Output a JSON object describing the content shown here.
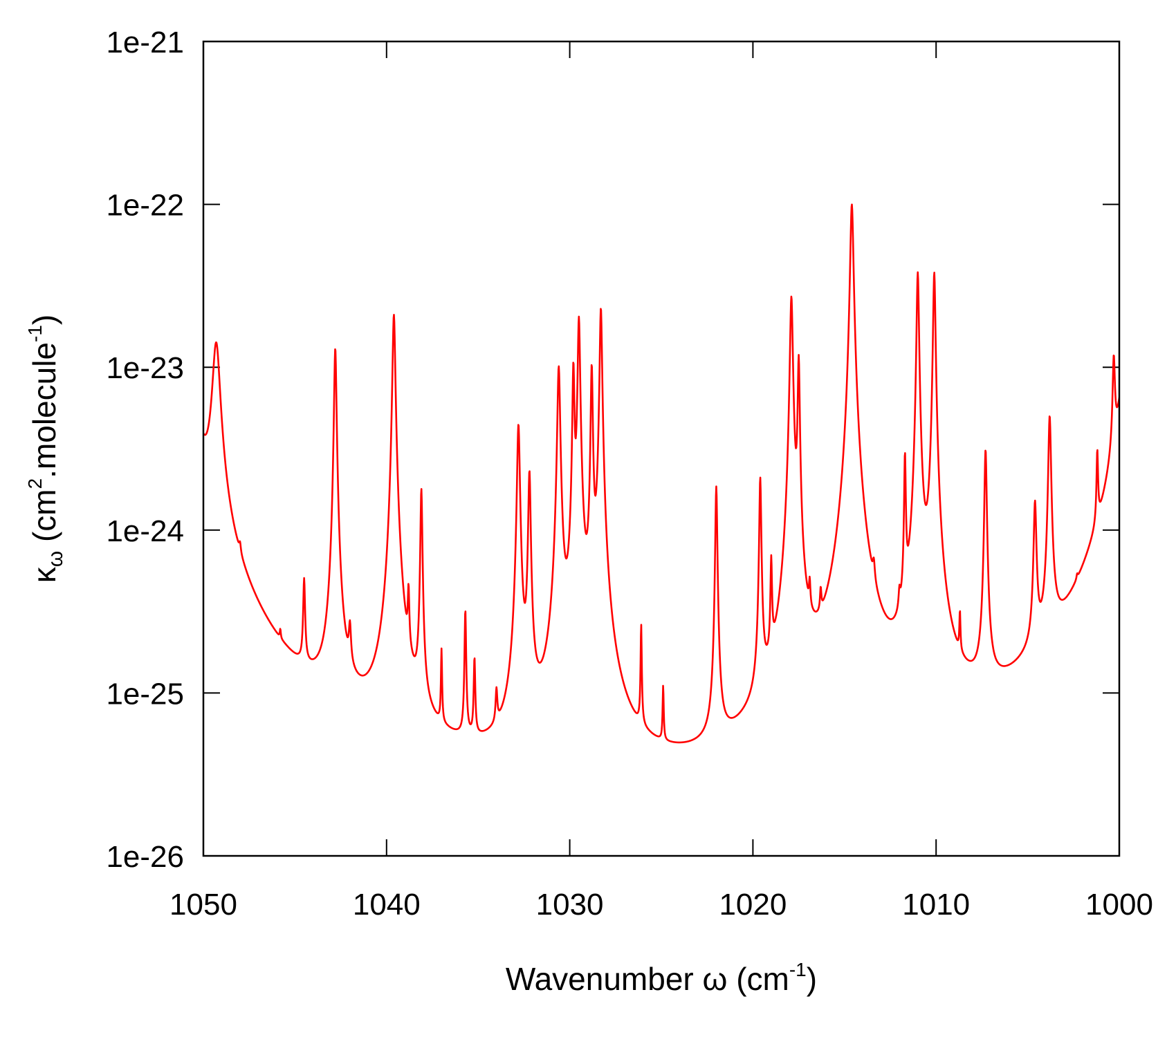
{
  "chart_data": {
    "type": "line",
    "title": "",
    "xlabel": {
      "base": "Wavenumber ω (cm",
      "sup": "-1",
      "tail": ")"
    },
    "ylabel": {
      "kappa": "κ",
      "sub": "ω",
      "mid": " (cm",
      "sup1": "2",
      "mid2": ".molecule",
      "sup2": "-1",
      "tail": ")"
    },
    "x_axis": {
      "range": [
        1050,
        1000
      ],
      "reversed": true,
      "ticks": [
        1050,
        1040,
        1030,
        1020,
        1010,
        1000
      ],
      "tick_labels": [
        "1050",
        "1040",
        "1030",
        "1020",
        "1010",
        "1000"
      ]
    },
    "y_axis": {
      "scale": "log",
      "range": [
        1e-26,
        1e-21
      ],
      "ticks": [
        1e-21,
        1e-22,
        1e-23,
        1e-24,
        1e-25,
        1e-26
      ],
      "tick_labels": [
        "1e-21",
        "1e-22",
        "1e-23",
        "1e-24",
        "1e-25",
        "1e-26"
      ]
    },
    "grid": false,
    "legend": "none",
    "series": [
      {
        "color": "#ff0000",
        "baseline": 1e-26,
        "peaks": [
          [
            1051.2,
            5e-23,
            0.3
          ],
          [
            1049.3,
            1.3e-23,
            0.2
          ],
          [
            1048.0,
            1e-25,
            0.05
          ],
          [
            1045.8,
            3e-26,
            0.03
          ],
          [
            1044.5,
            3.5e-25,
            0.05
          ],
          [
            1042.8,
            1.3e-23,
            0.06
          ],
          [
            1042.0,
            1.1e-25,
            0.06
          ],
          [
            1039.6,
            2.1e-23,
            0.07
          ],
          [
            1038.8,
            2.5e-25,
            0.04
          ],
          [
            1038.1,
            1.7e-24,
            0.05
          ],
          [
            1037.0,
            1.2e-25,
            0.03
          ],
          [
            1035.7,
            2.7e-25,
            0.04
          ],
          [
            1035.2,
            1.1e-25,
            0.04
          ],
          [
            1034.0,
            4e-26,
            0.05
          ],
          [
            1032.8,
            4.4e-24,
            0.07
          ],
          [
            1032.2,
            2.2e-24,
            0.06
          ],
          [
            1030.6,
            1e-23,
            0.07
          ],
          [
            1029.8,
            1e-23,
            0.05
          ],
          [
            1029.5,
            2e-23,
            0.06
          ],
          [
            1028.8,
            1e-23,
            0.05
          ],
          [
            1028.3,
            2.3e-23,
            0.06
          ],
          [
            1026.1,
            2e-25,
            0.03
          ],
          [
            1024.9,
            6e-26,
            0.03
          ],
          [
            1022.0,
            1.8e-24,
            0.05
          ],
          [
            1019.6,
            2e-24,
            0.05
          ],
          [
            1019.0,
            5e-25,
            0.04
          ],
          [
            1017.9,
            2.7e-23,
            0.07
          ],
          [
            1017.5,
            1.1e-23,
            0.05
          ],
          [
            1016.9,
            1.5e-25,
            0.04
          ],
          [
            1016.3,
            1.2e-25,
            0.04
          ],
          [
            1014.6,
            1e-22,
            0.08
          ],
          [
            1013.4,
            1.5e-25,
            0.06
          ],
          [
            1012.0,
            1e-25,
            0.05
          ],
          [
            1011.7,
            2.6e-24,
            0.04
          ],
          [
            1011.0,
            3.8e-23,
            0.06
          ],
          [
            1010.1,
            3.8e-23,
            0.06
          ],
          [
            1008.7,
            1.4e-25,
            0.03
          ],
          [
            1007.3,
            3e-24,
            0.06
          ],
          [
            1004.6,
            1.3e-24,
            0.07
          ],
          [
            1003.8,
            4.8e-24,
            0.07
          ],
          [
            1002.3,
            3.5e-26,
            0.04
          ],
          [
            1001.2,
            2e-24,
            0.04
          ],
          [
            1000.3,
            8.5e-24,
            0.06
          ],
          [
            999.2,
            5e-23,
            0.3
          ]
        ]
      }
    ]
  }
}
